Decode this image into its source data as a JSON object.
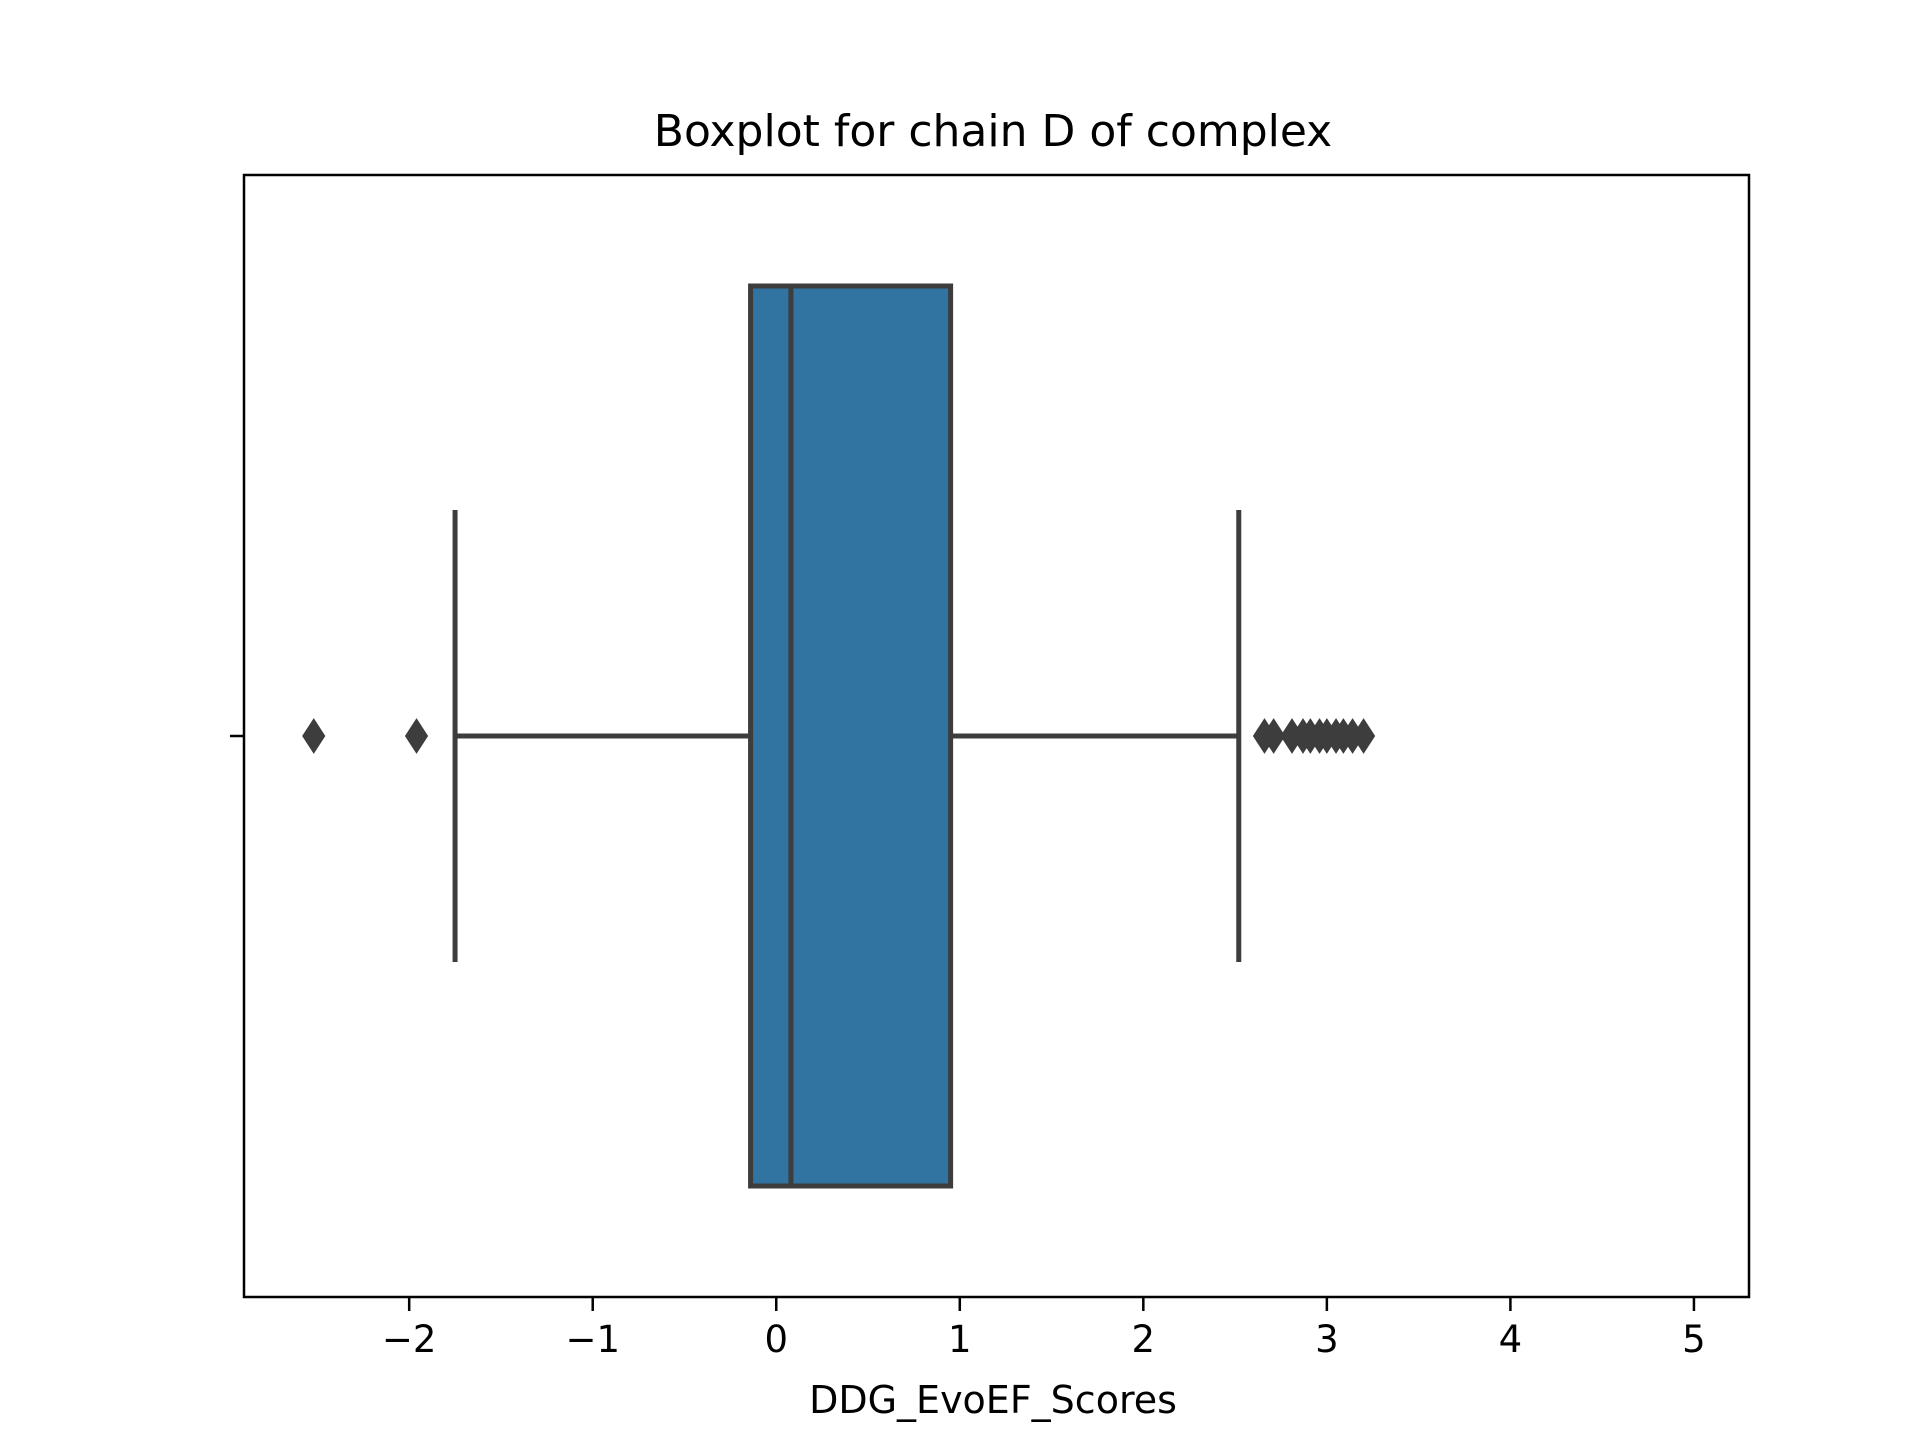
{
  "chart_data": {
    "type": "boxplot",
    "title": "Boxplot for chain D of complex",
    "xlabel": "DDG_EvoEF_Scores",
    "ylabel": "",
    "orientation": "horizontal",
    "xlim": [
      -2.9,
      5.3
    ],
    "xticks": [
      -2,
      -1,
      0,
      1,
      2,
      3,
      4,
      5
    ],
    "xtick_labels": [
      "−2",
      "−1",
      "0",
      "1",
      "2",
      "3",
      "4",
      "5"
    ],
    "grid": false,
    "series": [
      {
        "whisker_low": -1.75,
        "q1": -0.14,
        "median": 0.08,
        "q3": 0.95,
        "whisker_high": 2.52,
        "outliers": [
          -2.52,
          -1.96,
          2.66,
          2.71,
          2.81,
          2.87,
          2.91,
          2.96,
          3.0,
          3.05,
          3.09,
          3.14,
          3.2
        ],
        "color": "#3274a1",
        "edge_color": "#3d3d3d"
      }
    ]
  }
}
